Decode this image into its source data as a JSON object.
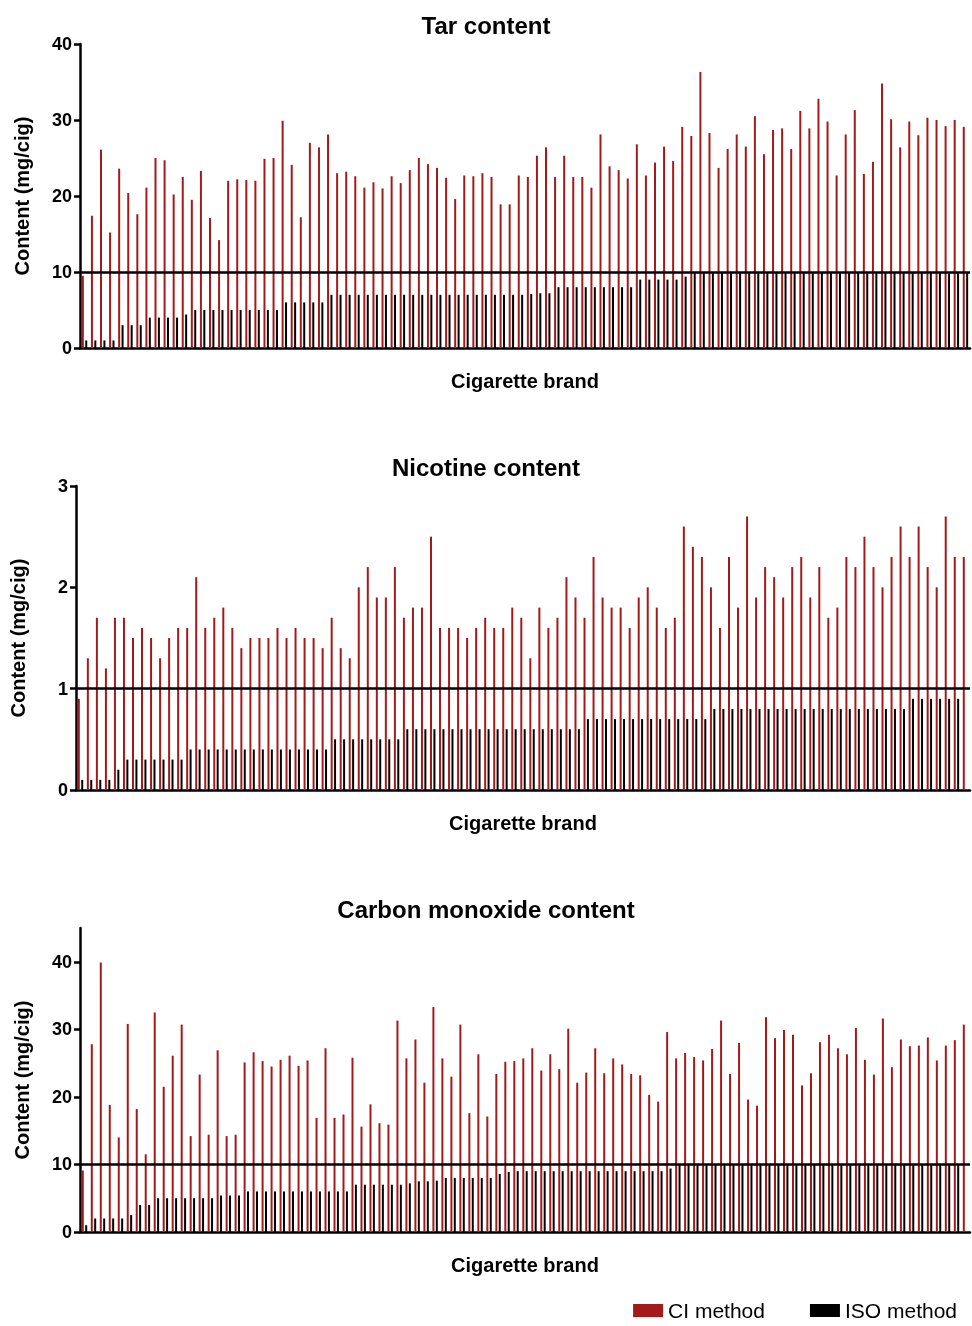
{
  "chart_data": [
    {
      "type": "bar",
      "title": "Tar content",
      "xlabel": "Cigarette brand",
      "ylabel": "Content (mg/cig)",
      "ylim": [
        0,
        40
      ],
      "yticks": [
        0,
        10,
        20,
        30,
        40
      ],
      "legend": false,
      "ref_lines": [
        {
          "axis": "y",
          "value": 10,
          "color": "#000000"
        }
      ],
      "categories": [
        null,
        null,
        null,
        null,
        null,
        null,
        null,
        null,
        null,
        null,
        null,
        null,
        null,
        null,
        null,
        null,
        null,
        null,
        null,
        null,
        null,
        null,
        null,
        null,
        null,
        null,
        null,
        null,
        null,
        null,
        null,
        null,
        null,
        null,
        null,
        null,
        null,
        null,
        null,
        null,
        null,
        null,
        null,
        null,
        null,
        null,
        null,
        null,
        null,
        null,
        null,
        null,
        null,
        null,
        null,
        null,
        null,
        null,
        null,
        null,
        null,
        null,
        null,
        null,
        null,
        null,
        null,
        null,
        null,
        null,
        null,
        null,
        null,
        null,
        null,
        null,
        null,
        null,
        null,
        null,
        null,
        null,
        null,
        null,
        null,
        null,
        null,
        null,
        null,
        null,
        null,
        null,
        null,
        null,
        null,
        null,
        null,
        null
      ],
      "series": [
        {
          "color": "#a31a1a",
          "values": [
            9.5,
            17.4,
            26.1,
            15.2,
            23.6,
            20.4,
            17.6,
            21.1,
            25.0,
            24.7,
            20.2,
            22.5,
            19.5,
            23.3,
            17.1,
            14.2,
            22.0,
            22.2,
            22.1,
            22.0,
            24.9,
            25.0,
            29.9,
            24.1,
            17.2,
            27.0,
            26.4,
            28.1,
            23.0,
            23.2,
            22.6,
            21.1,
            21.8,
            21.0,
            22.6,
            21.7,
            23.4,
            25.0,
            24.2,
            23.7,
            22.4,
            19.6,
            22.7,
            22.6,
            23.0,
            22.5,
            18.9,
            18.9,
            22.7,
            22.5,
            25.3,
            26.4,
            22.5,
            25.3,
            22.5,
            22.5,
            21.1,
            28.1,
            23.9,
            23.4,
            22.3,
            26.8,
            22.7,
            24.4,
            26.5,
            24.6,
            29.1,
            27.9,
            36.3,
            28.3,
            23.7,
            26.2,
            28.1,
            26.5,
            30.5,
            25.5,
            28.7,
            28.9,
            26.2,
            31.2,
            28.9,
            32.8,
            29.8,
            22.7,
            28.1,
            31.3,
            22.9,
            24.5,
            34.8,
            30.1,
            26.4,
            29.8,
            28.0,
            30.3,
            30.0,
            29.2,
            30.0,
            29.1
          ]
        },
        {
          "color": "#000000",
          "values": [
            1,
            1,
            1,
            1,
            3,
            3,
            3,
            4,
            4,
            4,
            4,
            4.4,
            5,
            5,
            5,
            5,
            5,
            5,
            5,
            5,
            5,
            5,
            6,
            6,
            6,
            6,
            6,
            7,
            7,
            7,
            7,
            7,
            7,
            7,
            7,
            7,
            7,
            7,
            7,
            7,
            7,
            7,
            7,
            7,
            7,
            7,
            7,
            7,
            7,
            7.1,
            7.2,
            7.2,
            8,
            8,
            8,
            8,
            8,
            8,
            8,
            8,
            8,
            9,
            9,
            9,
            9,
            9,
            9.4,
            10,
            10,
            10,
            10,
            10,
            10,
            10,
            10,
            10,
            10,
            10,
            10,
            10,
            10,
            10,
            10,
            10,
            10,
            10,
            10,
            10,
            10,
            10,
            10,
            10,
            10,
            10,
            10,
            10,
            10,
            10
          ]
        }
      ]
    },
    {
      "type": "bar",
      "title": "Nicotine content",
      "xlabel": "Cigarette brand",
      "ylabel": "Content (mg/cig)",
      "ylim": [
        0,
        3
      ],
      "yticks": [
        0,
        1,
        2,
        3
      ],
      "legend": false,
      "ref_lines": [
        {
          "axis": "y",
          "value": 1,
          "color": "#000000"
        }
      ],
      "categories": [
        null,
        null,
        null,
        null,
        null,
        null,
        null,
        null,
        null,
        null,
        null,
        null,
        null,
        null,
        null,
        null,
        null,
        null,
        null,
        null,
        null,
        null,
        null,
        null,
        null,
        null,
        null,
        null,
        null,
        null,
        null,
        null,
        null,
        null,
        null,
        null,
        null,
        null,
        null,
        null,
        null,
        null,
        null,
        null,
        null,
        null,
        null,
        null,
        null,
        null,
        null,
        null,
        null,
        null,
        null,
        null,
        null,
        null,
        null,
        null,
        null,
        null,
        null,
        null,
        null,
        null,
        null,
        null,
        null,
        null,
        null,
        null,
        null,
        null,
        null,
        null,
        null,
        null,
        null,
        null,
        null,
        null,
        null,
        null,
        null,
        null,
        null,
        null,
        null,
        null,
        null,
        null,
        null,
        null,
        null,
        null,
        null,
        null,
        null
      ],
      "series": [
        {
          "color": "#a31a1a",
          "values": [
            0.9,
            1.3,
            1.7,
            1.2,
            1.7,
            1.7,
            1.5,
            1.6,
            1.5,
            1.3,
            1.5,
            1.6,
            1.6,
            2.1,
            1.6,
            1.7,
            1.8,
            1.6,
            1.4,
            1.5,
            1.5,
            1.5,
            1.6,
            1.5,
            1.6,
            1.5,
            1.5,
            1.4,
            1.7,
            1.4,
            1.3,
            2.0,
            2.2,
            1.9,
            1.9,
            2.2,
            1.7,
            1.8,
            1.8,
            2.5,
            1.6,
            1.6,
            1.6,
            1.5,
            1.6,
            1.7,
            1.6,
            1.6,
            1.8,
            1.7,
            1.3,
            1.8,
            1.6,
            1.7,
            2.1,
            1.9,
            1.7,
            2.3,
            1.9,
            1.8,
            1.8,
            1.6,
            1.9,
            2.0,
            1.8,
            1.6,
            1.7,
            2.6,
            2.4,
            2.3,
            2.0,
            1.6,
            2.3,
            1.8,
            2.7,
            1.9,
            2.2,
            2.1,
            1.9,
            2.2,
            2.3,
            1.9,
            2.2,
            1.7,
            1.8,
            2.3,
            2.2,
            2.5,
            2.2,
            2.0,
            2.3,
            2.6,
            2.3,
            2.6,
            2.2,
            2.0,
            2.7,
            2.3,
            2.3
          ]
        },
        {
          "color": "#000000",
          "values": [
            0.1,
            0.1,
            0.1,
            0.1,
            0.2,
            0.3,
            0.3,
            0.3,
            0.3,
            0.3,
            0.3,
            0.3,
            0.4,
            0.4,
            0.4,
            0.4,
            0.4,
            0.4,
            0.4,
            0.4,
            0.4,
            0.4,
            0.4,
            0.4,
            0.4,
            0.4,
            0.4,
            0.4,
            0.5,
            0.5,
            0.5,
            0.5,
            0.5,
            0.5,
            0.5,
            0.5,
            0.6,
            0.6,
            0.6,
            0.6,
            0.6,
            0.6,
            0.6,
            0.6,
            0.6,
            0.6,
            0.6,
            0.6,
            0.6,
            0.6,
            0.6,
            0.6,
            0.6,
            0.6,
            0.6,
            0.6,
            0.7,
            0.7,
            0.7,
            0.7,
            0.7,
            0.7,
            0.7,
            0.7,
            0.7,
            0.7,
            0.7,
            0.7,
            0.7,
            0.7,
            0.8,
            0.8,
            0.8,
            0.8,
            0.8,
            0.8,
            0.8,
            0.8,
            0.8,
            0.8,
            0.8,
            0.8,
            0.8,
            0.8,
            0.8,
            0.8,
            0.8,
            0.8,
            0.8,
            0.8,
            0.8,
            0.8,
            0.9,
            0.9,
            0.9,
            0.9,
            0.9,
            0.9,
            null
          ]
        }
      ]
    },
    {
      "type": "bar",
      "title": "Carbon monoxide content",
      "xlabel": "Cigarette brand",
      "ylabel": "Content (mg/cig)",
      "ylim": [
        0,
        45
      ],
      "yticks": [
        0,
        10,
        20,
        30,
        40
      ],
      "legend": "bottom right",
      "ref_lines": [
        {
          "axis": "y",
          "value": 10,
          "color": "#000000"
        }
      ],
      "categories": [
        null,
        null,
        null,
        null,
        null,
        null,
        null,
        null,
        null,
        null,
        null,
        null,
        null,
        null,
        null,
        null,
        null,
        null,
        null,
        null,
        null,
        null,
        null,
        null,
        null,
        null,
        null,
        null,
        null,
        null,
        null,
        null,
        null,
        null,
        null,
        null,
        null,
        null,
        null,
        null,
        null,
        null,
        null,
        null,
        null,
        null,
        null,
        null,
        null,
        null,
        null,
        null,
        null,
        null,
        null,
        null,
        null,
        null,
        null,
        null,
        null,
        null,
        null,
        null,
        null,
        null,
        null,
        null,
        null,
        null,
        null,
        null,
        null,
        null,
        null,
        null,
        null,
        null,
        null,
        null,
        null,
        null,
        null,
        null,
        null,
        null,
        null,
        null,
        null,
        null,
        null,
        null,
        null,
        null,
        null,
        null,
        null,
        null,
        null
      ],
      "series": [
        {
          "name": "CI method",
          "color": "#a31a1a",
          "values": [
            9.1,
            27.8,
            39.9,
            18.8,
            14.0,
            30.8,
            18.2,
            11.5,
            32.5,
            21.5,
            26.1,
            30.7,
            14.2,
            23.3,
            14.4,
            26.9,
            14.2,
            14.4,
            25.1,
            26.6,
            25.3,
            24.5,
            25.5,
            26.1,
            24.6,
            25.4,
            16.9,
            27.2,
            16.9,
            17.4,
            25.8,
            15.6,
            18.9,
            16.1,
            15.9,
            31.3,
            25.7,
            28.5,
            22.1,
            33.3,
            25.7,
            23.0,
            30.7,
            17.6,
            26.3,
            17.1,
            23.4,
            25.2,
            25.3,
            25.7,
            27.2,
            23.9,
            26.3,
            24.1,
            30.1,
            22.1,
            23.6,
            27.2,
            23.5,
            25.7,
            24.8,
            23.4,
            23.2,
            20.3,
            19.3,
            29.6,
            25.7,
            26.5,
            25.9,
            25.4,
            27.1,
            31.3,
            23.4,
            28.0,
            19.6,
            18.7,
            31.8,
            28.7,
            29.9,
            29.2,
            21.7,
            23.5,
            28.1,
            29.2,
            27.2,
            26.3,
            30.2,
            25.5,
            23.3,
            31.6,
            24.4,
            28.5,
            27.5,
            27.6,
            28.8,
            25.4,
            27.6,
            28.4,
            30.7
          ]
        },
        {
          "name": "ISO method",
          "color": "#000000",
          "values": [
            1,
            2,
            2,
            2,
            2,
            2.5,
            4,
            4,
            5,
            5,
            5,
            5,
            5,
            5,
            5,
            5.4,
            5.4,
            5.4,
            6,
            6,
            6,
            6,
            6,
            6,
            6,
            6,
            6,
            6,
            6,
            6,
            7,
            7,
            7,
            7,
            7,
            7,
            7.2,
            7.5,
            7.5,
            7.6,
            8,
            8,
            8,
            8,
            8,
            8,
            8.6,
            8.9,
            9,
            9,
            9,
            9,
            9,
            9,
            9,
            9,
            9,
            9,
            9,
            9,
            9,
            9,
            9,
            9,
            9,
            9.4,
            10,
            10,
            10,
            10,
            10,
            10,
            10,
            10,
            10,
            10,
            10,
            10,
            10,
            10,
            10,
            10,
            10,
            10,
            10,
            10,
            10,
            10,
            10,
            10,
            10,
            10,
            10,
            10,
            10,
            10,
            10,
            10,
            null
          ]
        }
      ]
    }
  ]
}
